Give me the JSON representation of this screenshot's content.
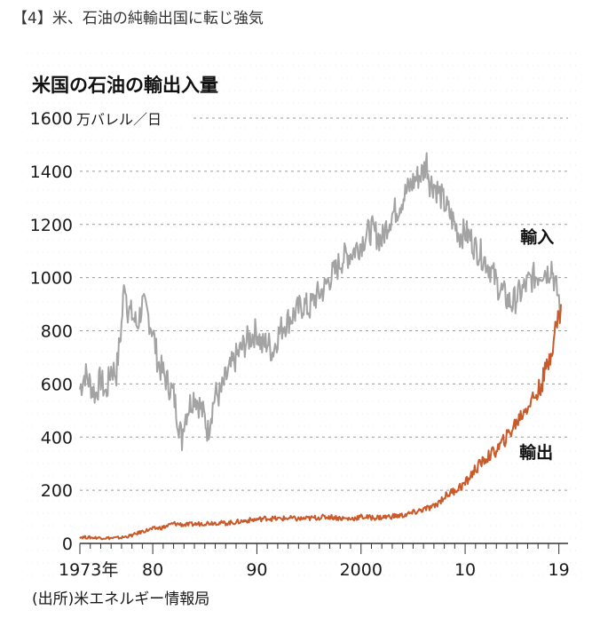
{
  "heading": "【4】米、石油の純輸出国に転じ強気",
  "chart_data": {
    "type": "line",
    "title": "米国の石油の輸出入量",
    "unit_label": "万バレル／日",
    "source": "(出所)米エネルギー情報局",
    "ylim": [
      0,
      1600
    ],
    "y_ticks": [
      "0",
      "200",
      "400",
      "600",
      "800",
      "1000",
      "1200",
      "1400",
      "1600"
    ],
    "x_range": [
      1973,
      2019.2
    ],
    "x_ticks": [
      {
        "year": 1973,
        "label": "1973年"
      },
      {
        "year": 1980,
        "label": "80"
      },
      {
        "year": 1990,
        "label": "90"
      },
      {
        "year": 2000,
        "label": "2000"
      },
      {
        "year": 2010,
        "label": "10"
      },
      {
        "year": 2019,
        "label": "19"
      }
    ],
    "grid": true,
    "series": [
      {
        "name": "輸入",
        "color": "#a3a3a3",
        "label_at": [
          2015.3,
          1130
        ],
        "points": [
          [
            1973.0,
            580
          ],
          [
            1973.5,
            640
          ],
          [
            1974.0,
            600
          ],
          [
            1974.5,
            560
          ],
          [
            1975.0,
            620
          ],
          [
            1975.5,
            560
          ],
          [
            1976.0,
            660
          ],
          [
            1976.5,
            640
          ],
          [
            1977.0,
            820
          ],
          [
            1977.3,
            1000
          ],
          [
            1977.6,
            880
          ],
          [
            1978.0,
            860
          ],
          [
            1978.5,
            820
          ],
          [
            1979.0,
            900
          ],
          [
            1979.5,
            860
          ],
          [
            1980.0,
            800
          ],
          [
            1980.5,
            680
          ],
          [
            1981.0,
            640
          ],
          [
            1981.5,
            600
          ],
          [
            1982.0,
            560
          ],
          [
            1982.5,
            450
          ],
          [
            1982.8,
            390
          ],
          [
            1983.0,
            470
          ],
          [
            1983.5,
            520
          ],
          [
            1984.0,
            560
          ],
          [
            1984.5,
            520
          ],
          [
            1985.0,
            470
          ],
          [
            1985.3,
            420
          ],
          [
            1985.6,
            490
          ],
          [
            1986.0,
            560
          ],
          [
            1986.5,
            560
          ],
          [
            1987.0,
            620
          ],
          [
            1987.5,
            660
          ],
          [
            1988.0,
            700
          ],
          [
            1988.5,
            730
          ],
          [
            1989.0,
            760
          ],
          [
            1989.5,
            780
          ],
          [
            1990.0,
            800
          ],
          [
            1990.5,
            740
          ],
          [
            1991.0,
            760
          ],
          [
            1991.5,
            720
          ],
          [
            1992.0,
            780
          ],
          [
            1992.5,
            820
          ],
          [
            1993.0,
            840
          ],
          [
            1993.5,
            860
          ],
          [
            1994.0,
            880
          ],
          [
            1994.5,
            900
          ],
          [
            1995.0,
            880
          ],
          [
            1995.5,
            920
          ],
          [
            1996.0,
            940
          ],
          [
            1996.5,
            960
          ],
          [
            1997.0,
            1000
          ],
          [
            1997.5,
            1020
          ],
          [
            1998.0,
            1060
          ],
          [
            1998.5,
            1080
          ],
          [
            1999.0,
            1090
          ],
          [
            1999.5,
            1110
          ],
          [
            2000.0,
            1130
          ],
          [
            2000.5,
            1160
          ],
          [
            2001.0,
            1180
          ],
          [
            2001.5,
            1160
          ],
          [
            2002.0,
            1140
          ],
          [
            2002.5,
            1200
          ],
          [
            2003.0,
            1240
          ],
          [
            2003.5,
            1260
          ],
          [
            2004.0,
            1300
          ],
          [
            2004.5,
            1330
          ],
          [
            2005.0,
            1360
          ],
          [
            2005.5,
            1380
          ],
          [
            2006.0,
            1400
          ],
          [
            2006.3,
            1440
          ],
          [
            2006.6,
            1360
          ],
          [
            2007.0,
            1350
          ],
          [
            2007.5,
            1320
          ],
          [
            2008.0,
            1280
          ],
          [
            2008.5,
            1240
          ],
          [
            2009.0,
            1200
          ],
          [
            2009.5,
            1160
          ],
          [
            2010.0,
            1170
          ],
          [
            2010.5,
            1150
          ],
          [
            2011.0,
            1110
          ],
          [
            2011.5,
            1090
          ],
          [
            2012.0,
            1060
          ],
          [
            2012.5,
            1030
          ],
          [
            2013.0,
            980
          ],
          [
            2013.5,
            950
          ],
          [
            2014.0,
            920
          ],
          [
            2014.5,
            900
          ],
          [
            2015.0,
            930
          ],
          [
            2015.5,
            950
          ],
          [
            2016.0,
            980
          ],
          [
            2016.5,
            1000
          ],
          [
            2017.0,
            1010
          ],
          [
            2017.5,
            1030
          ],
          [
            2018.0,
            1020
          ],
          [
            2018.3,
            1050
          ],
          [
            2018.6,
            980
          ],
          [
            2019.0,
            920
          ],
          [
            2019.2,
            880
          ]
        ]
      },
      {
        "name": "輸出",
        "color": "#c95a2a",
        "label_at": [
          2015.2,
          320
        ],
        "points": [
          [
            1973.0,
            24
          ],
          [
            1974.0,
            22
          ],
          [
            1975.0,
            21
          ],
          [
            1976.0,
            20
          ],
          [
            1977.0,
            22
          ],
          [
            1978.0,
            30
          ],
          [
            1979.0,
            45
          ],
          [
            1980.0,
            55
          ],
          [
            1981.0,
            60
          ],
          [
            1982.0,
            75
          ],
          [
            1983.0,
            70
          ],
          [
            1984.0,
            72
          ],
          [
            1985.0,
            76
          ],
          [
            1986.0,
            78
          ],
          [
            1987.0,
            76
          ],
          [
            1988.0,
            80
          ],
          [
            1989.0,
            86
          ],
          [
            1990.0,
            90
          ],
          [
            1991.0,
            95
          ],
          [
            1992.0,
            92
          ],
          [
            1993.0,
            95
          ],
          [
            1994.0,
            92
          ],
          [
            1995.0,
            94
          ],
          [
            1996.0,
            98
          ],
          [
            1997.0,
            100
          ],
          [
            1998.0,
            95
          ],
          [
            1999.0,
            92
          ],
          [
            2000.0,
            100
          ],
          [
            2001.0,
            97
          ],
          [
            2002.0,
            98
          ],
          [
            2003.0,
            102
          ],
          [
            2004.0,
            105
          ],
          [
            2005.0,
            115
          ],
          [
            2006.0,
            128
          ],
          [
            2007.0,
            138
          ],
          [
            2008.0,
            175
          ],
          [
            2009.0,
            200
          ],
          [
            2010.0,
            225
          ],
          [
            2011.0,
            280
          ],
          [
            2012.0,
            320
          ],
          [
            2013.0,
            350
          ],
          [
            2014.0,
            400
          ],
          [
            2015.0,
            460
          ],
          [
            2016.0,
            520
          ],
          [
            2017.0,
            570
          ],
          [
            2017.5,
            620
          ],
          [
            2018.0,
            680
          ],
          [
            2018.5,
            780
          ],
          [
            2019.0,
            850
          ],
          [
            2019.2,
            900
          ]
        ]
      }
    ]
  }
}
